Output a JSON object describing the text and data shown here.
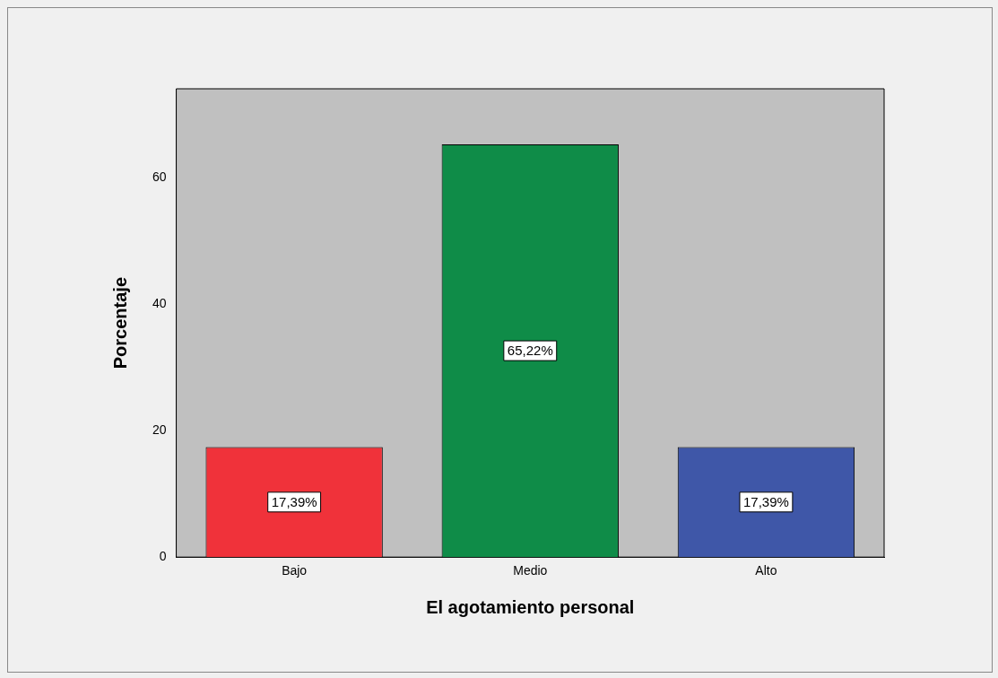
{
  "chart_data": {
    "type": "bar",
    "xlabel": "El agotamiento personal",
    "ylabel": "Porcentaje",
    "categories": [
      "Bajo",
      "Medio",
      "Alto"
    ],
    "values": [
      17.39,
      65.22,
      17.39
    ],
    "colors": [
      "#f0323a",
      "#0f8c48",
      "#3f57a8"
    ],
    "value_labels": [
      "17,39%",
      "65,22%",
      "17,39%"
    ],
    "ylim": [
      0,
      74
    ],
    "yticks": [
      0,
      20,
      40,
      60
    ],
    "grid": false,
    "legend": false
  }
}
